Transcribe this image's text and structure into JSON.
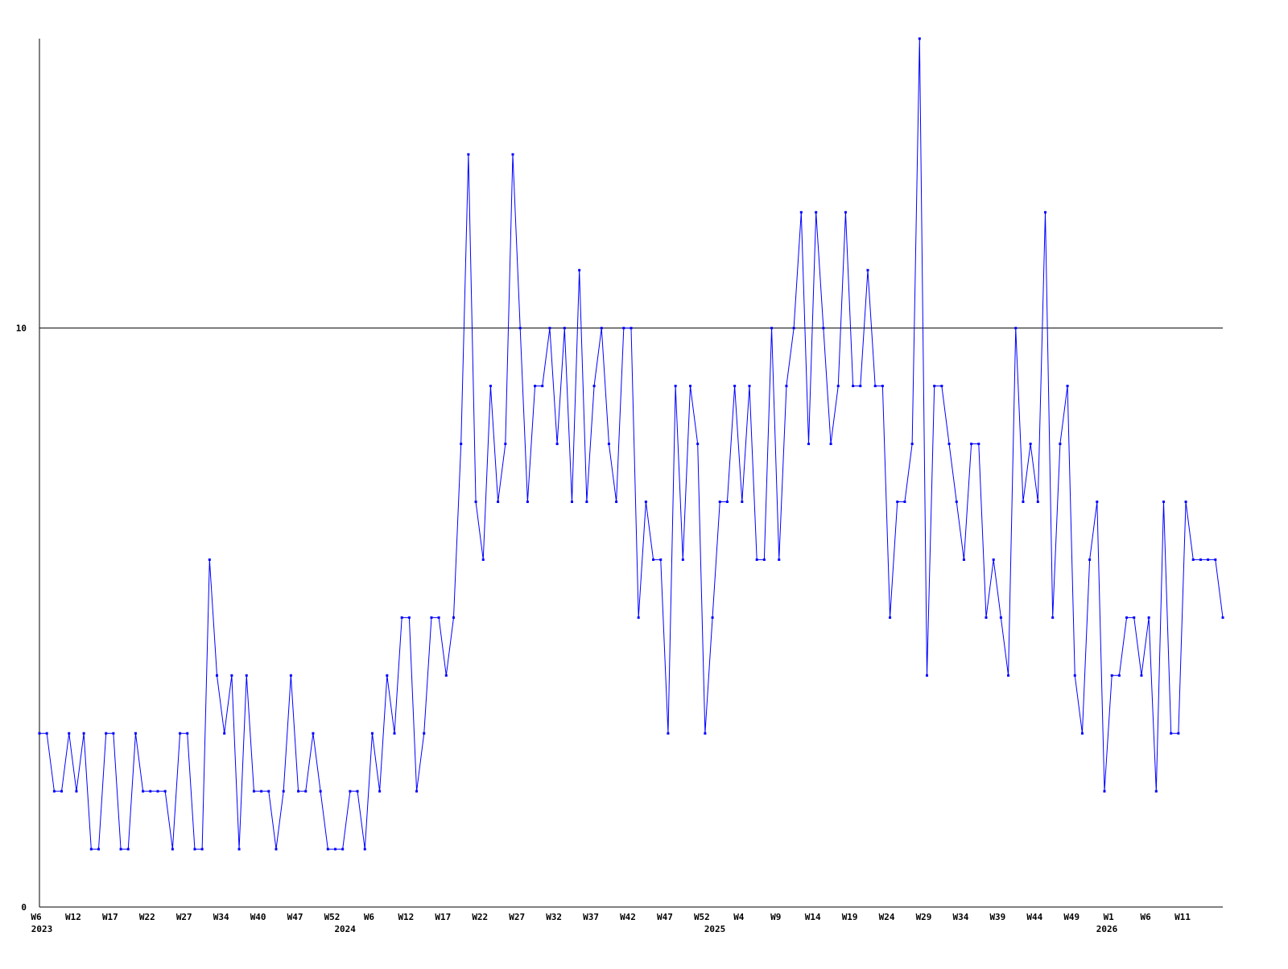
{
  "chart_data": {
    "type": "line",
    "categories": [
      "W6",
      null,
      null,
      null,
      null,
      "W12",
      null,
      null,
      null,
      null,
      "W17",
      null,
      null,
      null,
      null,
      "W22",
      null,
      null,
      null,
      null,
      "W27",
      null,
      null,
      null,
      null,
      "W34",
      null,
      null,
      null,
      null,
      "W40",
      null,
      null,
      null,
      null,
      "W47",
      null,
      null,
      null,
      null,
      "W52",
      null,
      null,
      null,
      null,
      "W6",
      null,
      null,
      null,
      null,
      "W12",
      null,
      null,
      null,
      null,
      "W17",
      null,
      null,
      null,
      null,
      "W22",
      null,
      null,
      null,
      null,
      "W27",
      null,
      null,
      null,
      null,
      "W32",
      null,
      null,
      null,
      null,
      "W37",
      null,
      null,
      null,
      null,
      "W42",
      null,
      null,
      null,
      null,
      "W47",
      null,
      null,
      null,
      null,
      "W52",
      null,
      null,
      null,
      null,
      "W4",
      null,
      null,
      null,
      null,
      "W9",
      null,
      null,
      null,
      null,
      "W14",
      null,
      null,
      null,
      null,
      "W19",
      null,
      null,
      null,
      null,
      "W24",
      null,
      null,
      null,
      null,
      "W29",
      null,
      null,
      null,
      null,
      "W34",
      null,
      null,
      null,
      null,
      "W39",
      null,
      null,
      null,
      null,
      "W44",
      null,
      null,
      null,
      null,
      "W49",
      null,
      null,
      null,
      null,
      "W1",
      null,
      null,
      null,
      null,
      "W6",
      null,
      null,
      null,
      null,
      "W11",
      null,
      null,
      null,
      null,
      null
    ],
    "years": [
      "2023",
      null,
      null,
      null,
      null,
      null,
      null,
      null,
      null,
      null,
      null,
      null,
      null,
      null,
      null,
      null,
      null,
      null,
      null,
      null,
      null,
      null,
      null,
      null,
      null,
      null,
      null,
      null,
      null,
      null,
      null,
      null,
      null,
      null,
      null,
      null,
      null,
      null,
      null,
      null,
      null,
      "2024",
      null,
      null,
      null,
      null,
      null,
      null,
      null,
      null,
      null,
      null,
      null,
      null,
      null,
      null,
      null,
      null,
      null,
      null,
      null,
      null,
      null,
      null,
      null,
      null,
      null,
      null,
      null,
      null,
      null,
      null,
      null,
      null,
      null,
      null,
      null,
      null,
      null,
      null,
      null,
      null,
      null,
      null,
      null,
      null,
      null,
      null,
      null,
      null,
      null,
      "2025",
      null,
      null,
      null,
      null,
      null,
      null,
      null,
      null,
      null,
      null,
      null,
      null,
      null,
      null,
      null,
      null,
      null,
      null,
      null,
      null,
      null,
      null,
      null,
      null,
      null,
      null,
      null,
      null,
      null,
      null,
      null,
      null,
      null,
      null,
      null,
      null,
      null,
      null,
      null,
      null,
      null,
      null,
      null,
      null,
      null,
      null,
      null,
      null,
      null,
      null,
      null,
      null,
      "2026",
      null,
      null,
      null,
      null,
      null,
      null,
      null,
      null,
      null,
      null,
      null,
      null,
      null,
      null,
      null,
      null
    ],
    "series": [
      {
        "color": "#0000ff",
        "values": [
          3,
          3,
          2,
          2,
          3,
          2,
          3,
          1,
          1,
          3,
          3,
          1,
          1,
          3,
          2,
          2,
          2,
          2,
          1,
          3,
          3,
          1,
          1,
          6,
          4,
          3,
          4,
          1,
          4,
          2,
          2,
          2,
          1,
          2,
          4,
          2,
          2,
          3,
          2,
          1,
          1,
          1,
          2,
          2,
          1,
          3,
          2,
          4,
          3,
          5,
          5,
          2,
          3,
          5,
          5,
          4,
          5,
          8,
          13,
          7,
          6,
          9,
          7,
          8,
          13,
          10,
          7,
          9,
          9,
          10,
          8,
          10,
          7,
          11,
          7,
          9,
          10,
          8,
          7,
          10,
          10,
          5,
          7,
          6,
          6,
          3,
          9,
          6,
          9,
          8,
          3,
          5,
          7,
          7,
          9,
          7,
          9,
          6,
          6,
          10,
          6,
          9,
          10,
          12,
          8,
          12,
          10,
          8,
          9,
          12,
          9,
          9,
          11,
          9,
          9,
          5,
          7,
          7,
          8,
          15,
          4,
          9,
          9,
          8,
          7,
          6,
          8,
          8,
          5,
          6,
          5,
          4,
          10,
          7,
          8,
          7,
          12,
          5,
          8,
          9,
          4,
          3,
          6,
          7,
          2,
          4,
          4,
          5,
          5,
          4,
          5,
          2,
          7,
          3,
          3,
          7,
          6,
          6,
          6,
          6,
          5
        ]
      }
    ],
    "ylim": [
      0,
      15
    ],
    "yticks": [
      0,
      10
    ],
    "grid": true
  }
}
